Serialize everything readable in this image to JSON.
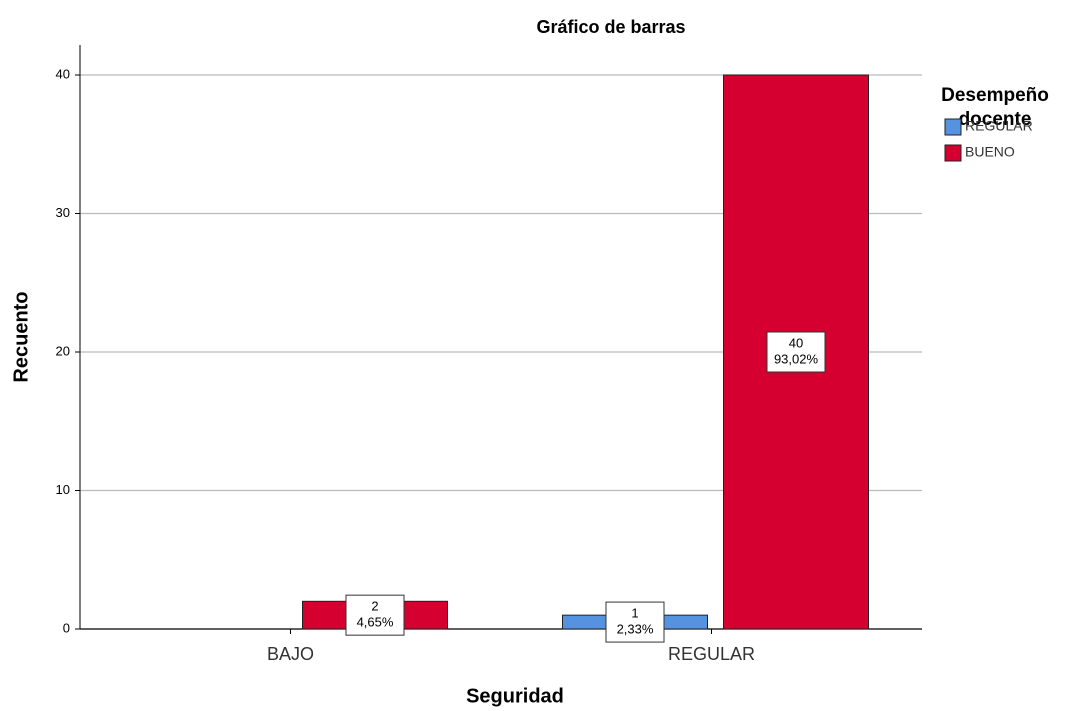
{
  "chart_data": {
    "type": "bar",
    "title": "Gráfico de barras",
    "x_label": "Seguridad",
    "y_label": "Recuento",
    "categories": [
      "BAJO",
      "REGULAR"
    ],
    "legend_title": [
      "Desempeño",
      "docente"
    ],
    "legend_position": "right",
    "series": [
      {
        "name": "REGULAR",
        "color": "#5593e0",
        "values": [
          null,
          1
        ],
        "percents": [
          null,
          2.33
        ],
        "percent_labels": [
          null,
          "2,33%"
        ]
      },
      {
        "name": "BUENO",
        "color": "#d5002f",
        "values": [
          2,
          40
        ],
        "percents": [
          4.65,
          93.02
        ],
        "percent_labels": [
          "4,65%",
          "93,02%"
        ]
      }
    ],
    "ylim": [
      0,
      40
    ],
    "yticks": [
      0,
      10,
      20,
      30,
      40
    ],
    "grid": true
  }
}
